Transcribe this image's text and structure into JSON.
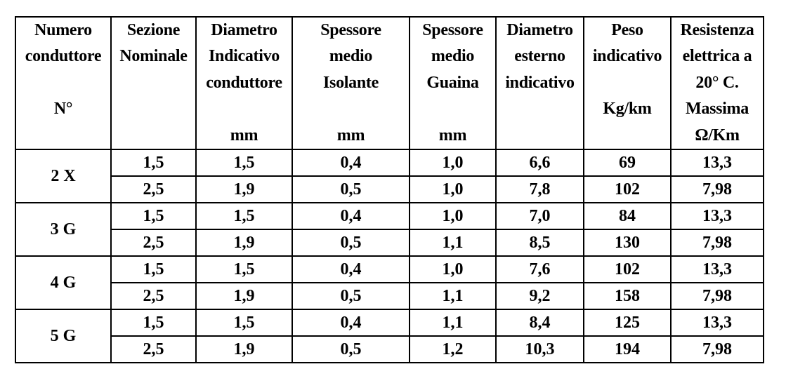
{
  "table": {
    "headers": [
      {
        "lines": [
          "Numero",
          "conduttore",
          "",
          "N°",
          ""
        ]
      },
      {
        "lines": [
          "Sezione",
          "Nominale",
          "",
          "",
          ""
        ]
      },
      {
        "lines": [
          "Diametro",
          "Indicativo",
          "conduttore",
          "",
          "mm"
        ]
      },
      {
        "lines": [
          "Spessore",
          "medio",
          "Isolante",
          "",
          "mm"
        ]
      },
      {
        "lines": [
          "Spessore",
          "medio",
          "Guaina",
          "",
          "mm"
        ]
      },
      {
        "lines": [
          "Diametro",
          "esterno",
          "indicativo",
          "",
          ""
        ]
      },
      {
        "lines": [
          "Peso",
          "indicativo",
          "",
          "Kg/km",
          ""
        ]
      },
      {
        "lines": [
          "Resistenza",
          "elettrica a",
          "20° C.",
          "Massima",
          "Ω/Km"
        ]
      }
    ],
    "groups": [
      {
        "label": "2 X",
        "rows": [
          [
            "1,5",
            "1,5",
            "0,4",
            "1,0",
            "6,6",
            "69",
            "13,3"
          ],
          [
            "2,5",
            "1,9",
            "0,5",
            "1,0",
            "7,8",
            "102",
            "7,98"
          ]
        ]
      },
      {
        "label": "3 G",
        "rows": [
          [
            "1,5",
            "1,5",
            "0,4",
            "1,0",
            "7,0",
            "84",
            "13,3"
          ],
          [
            "2,5",
            "1,9",
            "0,5",
            "1,1",
            "8,5",
            "130",
            "7,98"
          ]
        ]
      },
      {
        "label": "4 G",
        "rows": [
          [
            "1,5",
            "1,5",
            "0,4",
            "1,0",
            "7,6",
            "102",
            "13,3"
          ],
          [
            "2,5",
            "1,9",
            "0,5",
            "1,1",
            "9,2",
            "158",
            "7,98"
          ]
        ]
      },
      {
        "label": "5 G",
        "rows": [
          [
            "1,5",
            "1,5",
            "0,4",
            "1,1",
            "8,4",
            "125",
            "13,3"
          ],
          [
            "2,5",
            "1,9",
            "0,5",
            "1,2",
            "10,3",
            "194",
            "7,98"
          ]
        ]
      }
    ]
  }
}
